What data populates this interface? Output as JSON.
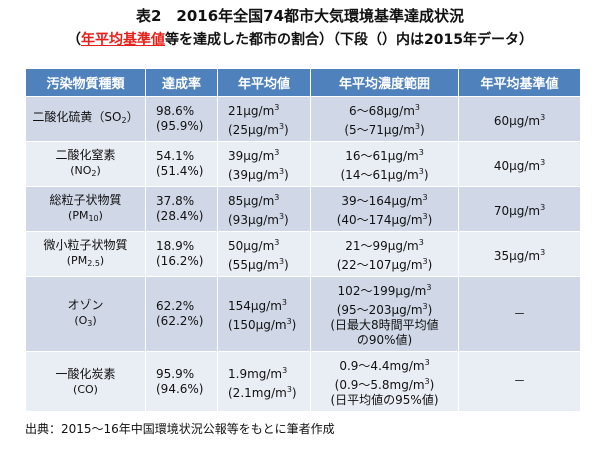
{
  "title": "表2　2016年全国74都市大気環境基準達成状況",
  "subtitle": {
    "open": "（",
    "highlight": "年平均基準値",
    "rest": "等を達成した都市の割合）（下段（）内は2015年データ）"
  },
  "table": {
    "headers": [
      "汚染物質種類",
      "達成率",
      "年平均値",
      "年平均濃度範囲",
      "年平均基準値"
    ],
    "rows": [
      {
        "name": "二酸化硫黄",
        "formula_pre": "（SO",
        "formula_sub": "2",
        "formula_post": "）",
        "rate": [
          "98.6%",
          "(95.9%)"
        ],
        "mean": [
          "21μg/m",
          "(25μg/m",
          ")"
        ],
        "range": [
          "6～68μg/m",
          "(5～71μg/m",
          ")",
          ""
        ],
        "standard": "60μg/m"
      },
      {
        "name": "二酸化窒素",
        "formula_pre": "(NO",
        "formula_sub": "2",
        "formula_post": ")",
        "rate": [
          "54.1%",
          "(51.4%)"
        ],
        "mean": [
          "39μg/m",
          "(39μg/m",
          ")"
        ],
        "range": [
          "16～61μg/m",
          "(14～61μg/m",
          ")",
          ""
        ],
        "standard": "40μg/m"
      },
      {
        "name": "総粒子状物質",
        "formula_pre": "(PM",
        "formula_sub": "10",
        "formula_post": ")",
        "rate": [
          "37.8%",
          "(28.4%)"
        ],
        "mean": [
          "85μg/m",
          "(93μg/m",
          ")"
        ],
        "range": [
          "39～164μg/m",
          "(40～174μg/m",
          ")",
          ""
        ],
        "standard": "70μg/m"
      },
      {
        "name": "微小粒子状物質",
        "formula_pre": "(PM",
        "formula_sub": "2.5",
        "formula_post": ")",
        "rate": [
          "18.9%",
          "(16.2%)"
        ],
        "mean": [
          "50μg/m",
          "(55μg/m",
          ")"
        ],
        "range": [
          "21～99μg/m",
          "(22～107μg/m",
          ")",
          ""
        ],
        "standard": "35μg/m"
      },
      {
        "name": "オゾン",
        "formula_pre": "(O",
        "formula_sub": "3",
        "formula_post": ")",
        "rate": [
          "62.2%",
          "(62.2%)"
        ],
        "mean": [
          "154μg/m",
          "(150μg/m",
          ")"
        ],
        "range": [
          "102～199μg/m",
          "(95～203μg/m",
          ")",
          "(日最大8時間平均値",
          "の90%値)"
        ],
        "standard": "－"
      },
      {
        "name": "一酸化炭素",
        "formula_pre": "(CO)",
        "formula_sub": "",
        "formula_post": "",
        "rate": [
          "95.9%",
          "(94.6%)"
        ],
        "mean": [
          "1.9mg/m",
          "(2.1mg/m",
          ")"
        ],
        "range": [
          "0.9～4.4mg/m",
          "(0.9～5.8mg/m",
          ")",
          "(日平均値の95%値)"
        ],
        "standard": "－"
      }
    ],
    "cube": "3"
  },
  "source": "出典：2015～16年中国環境状況公報等をもとに筆者作成"
}
